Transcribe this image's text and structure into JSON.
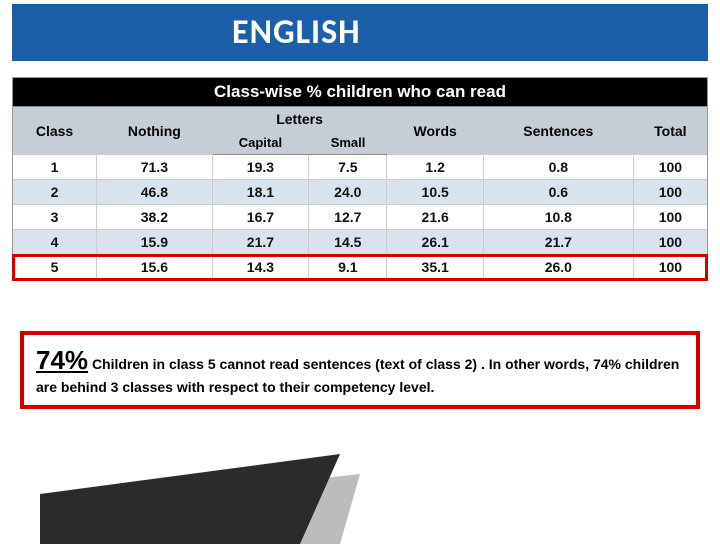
{
  "title": "ENGLISH",
  "table": {
    "caption": "Class-wise % children who can read",
    "headers": {
      "class": "Class",
      "nothing": "Nothing",
      "letters": "Letters",
      "capital": "Capital",
      "small": "Small",
      "words": "Words",
      "sentences": "Sentences",
      "total": "Total"
    },
    "rows": [
      {
        "class": "1",
        "nothing": "71.3",
        "capital": "19.3",
        "small": "7.5",
        "words": "1.2",
        "sentences": "0.8",
        "total": "100"
      },
      {
        "class": "2",
        "nothing": "46.8",
        "capital": "18.1",
        "small": "24.0",
        "words": "10.5",
        "sentences": "0.6",
        "total": "100"
      },
      {
        "class": "3",
        "nothing": "38.2",
        "capital": "16.7",
        "small": "12.7",
        "words": "21.6",
        "sentences": "10.8",
        "total": "100"
      },
      {
        "class": "4",
        "nothing": "15.9",
        "capital": "21.7",
        "small": "14.5",
        "words": "26.1",
        "sentences": "21.7",
        "total": "100"
      },
      {
        "class": "5",
        "nothing": "15.6",
        "capital": "14.3",
        "small": "9.1",
        "words": "35.1",
        "sentences": "26.0",
        "total": "100"
      }
    ],
    "highlight_row_index": 4,
    "alt_row_bg": "#d9e3ee",
    "header_bg": "#c5ced7",
    "caption_bg": "#000000",
    "caption_color": "#ffffff",
    "highlight_border": "#d40000"
  },
  "callout": {
    "pct": "74%",
    "text": " Children in class 5 cannot read sentences (text of class 2) . In other words, 74% children are behind 3 classes with respect to their competency level.",
    "border_color": "#d40000"
  },
  "title_bar": {
    "bg": "#1c5fa8",
    "color": "#ffffff"
  },
  "decor_colors": {
    "dark": "#2b2b2b",
    "light": "#bcbcbc"
  }
}
